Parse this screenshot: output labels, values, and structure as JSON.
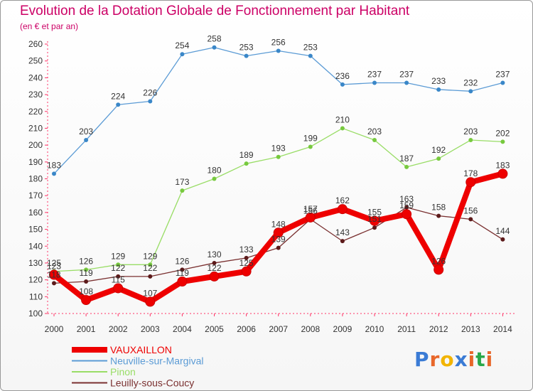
{
  "header": {
    "title": "Evolution de la Dotation Globale de Fonctionnement par Habitant",
    "subtitle": "(en € et par an)"
  },
  "logo": {
    "text": "Proxiti",
    "letters": [
      "P",
      "r",
      "o",
      "x",
      "i",
      "t",
      "i"
    ],
    "colors": [
      "#3a7bd5",
      "#e8672a",
      "#f2b400",
      "#3a7bd5",
      "#e8672a",
      "#2aa84a",
      "#e8672a"
    ]
  },
  "chart_data": {
    "type": "line",
    "title": "Evolution de la Dotation Globale de Fonctionnement par Habitant",
    "subtitle": "(en € et par an)",
    "x": [
      2000,
      2001,
      2002,
      2003,
      2004,
      2005,
      2006,
      2007,
      2008,
      2009,
      2010,
      2011,
      2012,
      2013,
      2014
    ],
    "ylim": [
      100,
      260
    ],
    "yticks": [
      100,
      110,
      120,
      130,
      140,
      150,
      160,
      170,
      180,
      190,
      200,
      210,
      220,
      230,
      240,
      250,
      260
    ],
    "grid": false,
    "legend_position": "bottom-left",
    "series": [
      {
        "name": "VAUXAILLON",
        "color": "#ee0000",
        "marker_color": "#ee0000",
        "emphasis": true,
        "values": [
          123,
          108,
          115,
          107,
          119,
          122,
          125,
          148,
          157,
          162,
          155,
          159,
          126,
          178,
          183
        ]
      },
      {
        "name": "Neuville-sur-Margival",
        "color": "#5b9bd5",
        "marker_color": "#3a87c8",
        "emphasis": false,
        "values": [
          183,
          203,
          224,
          226,
          254,
          258,
          253,
          256,
          253,
          236,
          237,
          237,
          233,
          232,
          237
        ]
      },
      {
        "name": "Pinon",
        "color": "#99dd66",
        "marker_color": "#77c93e",
        "emphasis": false,
        "values": [
          125,
          126,
          129,
          129,
          173,
          180,
          189,
          193,
          199,
          210,
          203,
          187,
          192,
          203,
          202
        ]
      },
      {
        "name": "Leuilly-sous-Coucy",
        "color": "#7a3030",
        "marker_color": "#5c1a1a",
        "emphasis": false,
        "values": [
          118,
          119,
          122,
          122,
          126,
          130,
          133,
          139,
          156,
          143,
          151,
          163,
          158,
          156,
          144
        ]
      }
    ]
  }
}
